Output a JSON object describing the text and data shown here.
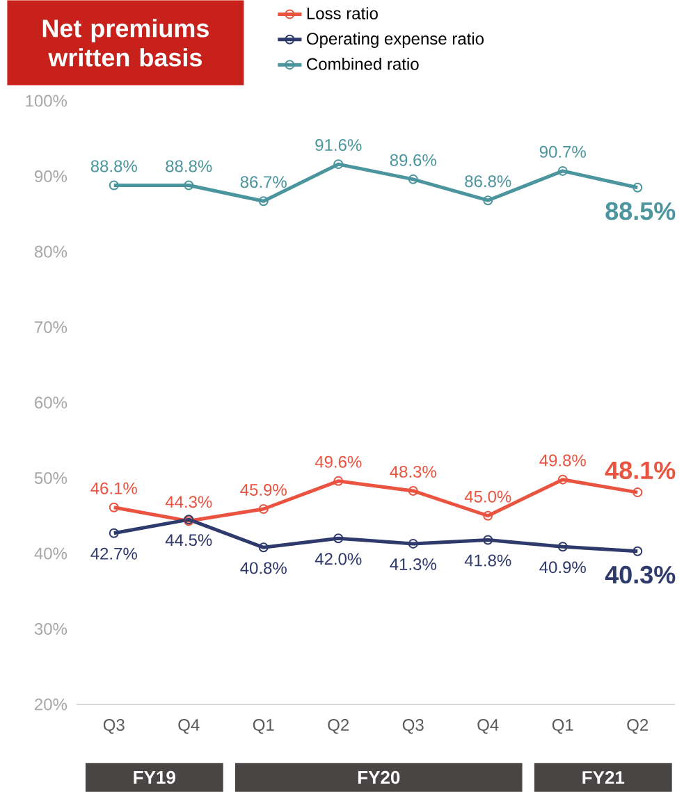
{
  "chart_data": {
    "type": "line",
    "title": "Net premiums written basis",
    "categories": [
      "Q3",
      "Q4",
      "Q1",
      "Q2",
      "Q3",
      "Q4",
      "Q1",
      "Q2"
    ],
    "series": [
      {
        "name": "Loss ratio",
        "color": "#e9533f",
        "values": [
          46.1,
          44.3,
          45.9,
          49.6,
          48.3,
          45.0,
          49.8,
          48.1
        ],
        "value_labels": [
          "46.1%",
          "44.3%",
          "45.9%",
          "49.6%",
          "48.3%",
          "45.0%",
          "49.8%",
          "48.1%"
        ]
      },
      {
        "name": "Operating expense ratio",
        "color": "#2e3a6b",
        "values": [
          42.7,
          44.5,
          40.8,
          42.0,
          41.3,
          41.8,
          40.9,
          40.3
        ],
        "value_labels": [
          "42.7%",
          "44.5%",
          "40.8%",
          "42.0%",
          "41.3%",
          "41.8%",
          "40.9%",
          "40.3%"
        ]
      },
      {
        "name": "Combined ratio",
        "color": "#4b959e",
        "values": [
          88.8,
          88.8,
          86.7,
          91.6,
          89.6,
          86.8,
          90.7,
          88.5
        ],
        "value_labels": [
          "88.8%",
          "88.8%",
          "86.7%",
          "91.6%",
          "89.6%",
          "86.8%",
          "90.7%",
          "88.5%"
        ]
      }
    ],
    "ylim": [
      20,
      100
    ],
    "yticks": [
      {
        "value": 20,
        "label": "20%"
      },
      {
        "value": 30,
        "label": "30%"
      },
      {
        "value": 40,
        "label": "40%"
      },
      {
        "value": 50,
        "label": "50%"
      },
      {
        "value": 60,
        "label": "60%"
      },
      {
        "value": 70,
        "label": "70%"
      },
      {
        "value": 80,
        "label": "80%"
      },
      {
        "value": 90,
        "label": "90%"
      },
      {
        "value": 100,
        "label": "100%"
      }
    ],
    "annotations": [
      "FY19",
      "FY20",
      "FY21"
    ],
    "legend": "top",
    "marker": "circle",
    "line_style": "solid"
  }
}
